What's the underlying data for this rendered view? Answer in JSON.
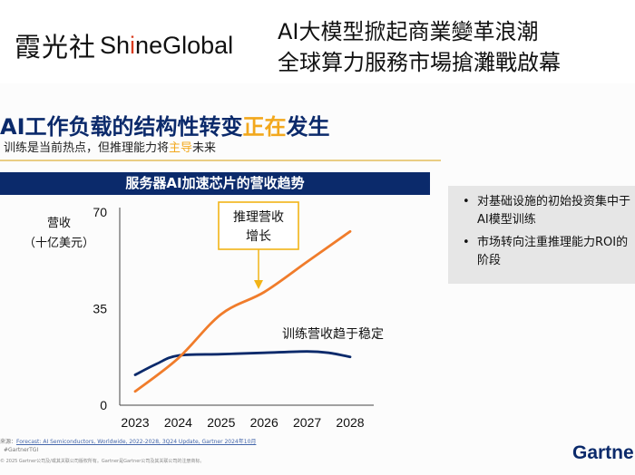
{
  "header": {
    "logo_cjk": "霞光社",
    "logo_latin_a": "Sh",
    "logo_latin_i": "i",
    "logo_latin_b": "neGlobal",
    "headline_line1": "AI大模型掀起商業變革浪潮",
    "headline_line2": "全球算力服務市場搶灘戰啟幕"
  },
  "slide": {
    "title_part1": "AI工作负载的结构性转变",
    "title_highlight": "正在",
    "title_part2": "发生",
    "subtitle_part1": "训练是当前热点，但推理能力将",
    "subtitle_highlight": "主导",
    "subtitle_part2": "未来"
  },
  "chart_banner": "服务器AI加速芯片的营收趋势",
  "y_axis_label_line1": "营收",
  "y_axis_label_line2": "（十亿美元）",
  "chart_data": {
    "type": "line",
    "title": "服务器AI加速芯片的营收趋势",
    "xlabel": "",
    "ylabel": "营收（十亿美元）",
    "x": [
      2023,
      2024,
      2025,
      2026,
      2027,
      2028
    ],
    "ylim": [
      0,
      70
    ],
    "yticks": [
      0,
      35,
      70
    ],
    "grid": false,
    "series": [
      {
        "name": "推理营收增长",
        "color": "#f07c2b",
        "points": [
          [
            2023,
            5
          ],
          [
            2024,
            17
          ],
          [
            2025,
            33
          ],
          [
            2026,
            41
          ],
          [
            2027,
            52
          ],
          [
            2028,
            63
          ]
        ]
      },
      {
        "name": "训练营收趋于稳定",
        "color": "#0b2a6b",
        "points": [
          [
            2023,
            11
          ],
          [
            2023.5,
            15
          ],
          [
            2024,
            18
          ],
          [
            2025,
            18.5
          ],
          [
            2026,
            19
          ],
          [
            2027,
            19.5
          ],
          [
            2027.5,
            19
          ],
          [
            2028,
            17.5
          ]
        ]
      }
    ],
    "annotations": {
      "inference_line1": "推理营收",
      "inference_line2": "增长",
      "training": "训练营收趋于稳定"
    }
  },
  "notes": [
    "对基础设施的初始投资集中于AI模型训练",
    "市场转向注重推理能力ROI的阶段"
  ],
  "bullet_char": "•",
  "footer": {
    "source_prefix": "来源：",
    "source_link": "Forecast: AI Semiconductors, Worldwide, 2022-2028, 3Q24 Update, Gartner 2024年10月",
    "hashtag": "#GartnerTGI",
    "copyright": "© 2025 Gartner公司及/或其关联公司版权所有。Gartner是Gartner公司及其关联公司的注册商标。",
    "brand": "Gartner"
  }
}
